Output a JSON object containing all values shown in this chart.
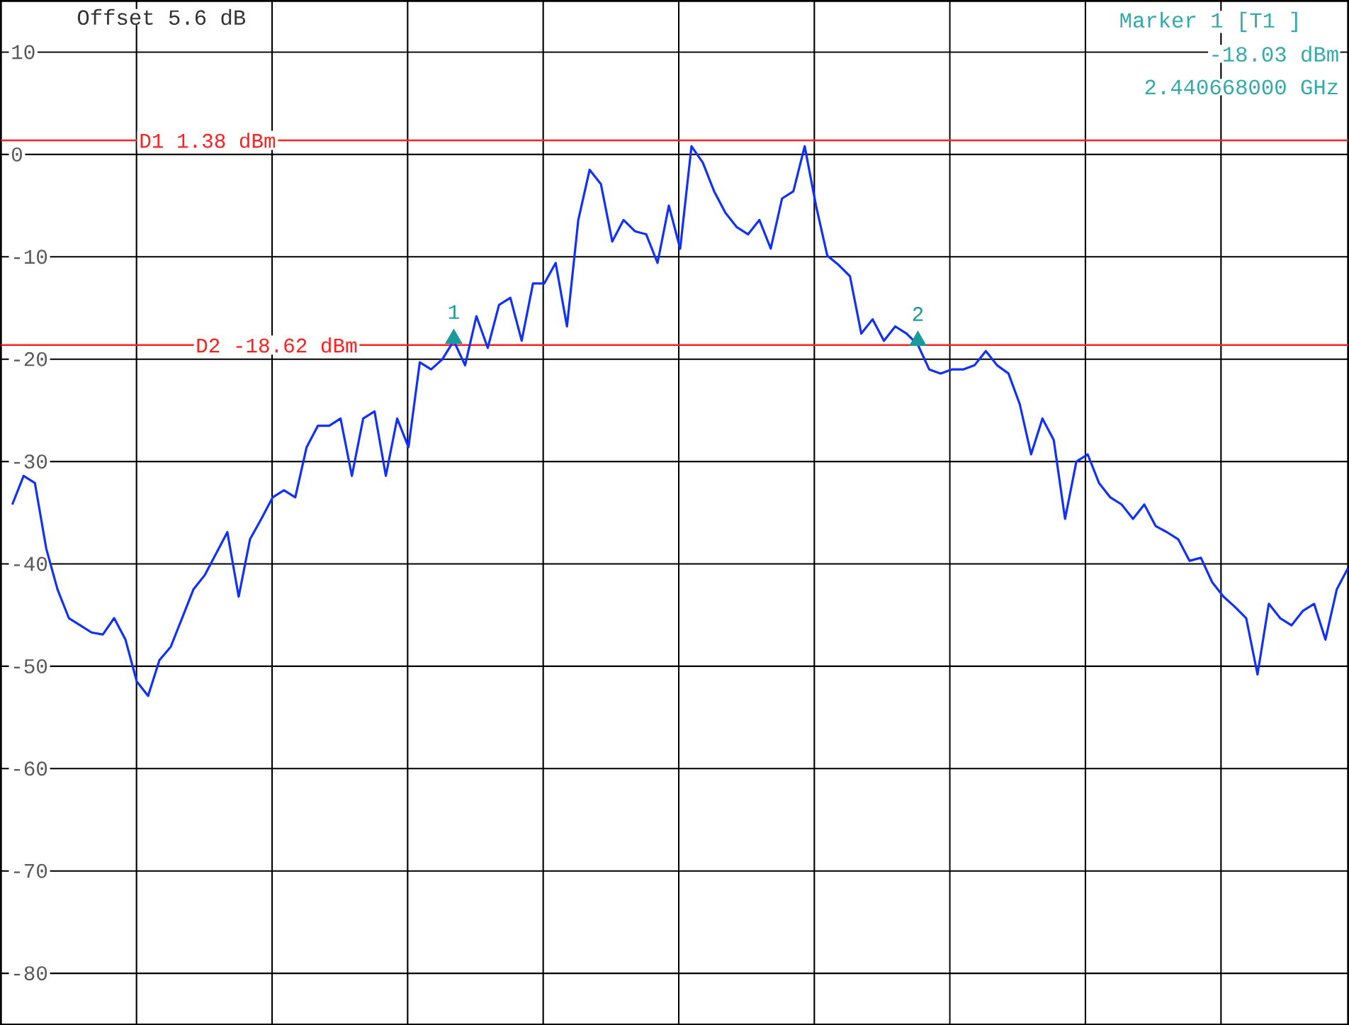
{
  "chart_data": {
    "type": "line",
    "categories": [
      null,
      null,
      null,
      null,
      null,
      null,
      null,
      null,
      null,
      null,
      null,
      null,
      null,
      null,
      null,
      null,
      null,
      null,
      null,
      null,
      null,
      null,
      null,
      null,
      null,
      null,
      null,
      null,
      null,
      null,
      null,
      null,
      null,
      null,
      null,
      null,
      null,
      null,
      null,
      null,
      null,
      null,
      null,
      null,
      null,
      null,
      null,
      null,
      null,
      null,
      null,
      null,
      null,
      null,
      null,
      null,
      null,
      null,
      null,
      null,
      null,
      null,
      null,
      null,
      null,
      null,
      null,
      null,
      null,
      null,
      null,
      null,
      null,
      null,
      null,
      null,
      null,
      null,
      null,
      null,
      null,
      null,
      null,
      null,
      null,
      null,
      null,
      null,
      null,
      null,
      null,
      null,
      null,
      null,
      null,
      null,
      null,
      null,
      null,
      null,
      null,
      null,
      null,
      null,
      null,
      null,
      null,
      null,
      null,
      null,
      null,
      null,
      null,
      null,
      null,
      null,
      null,
      null,
      null
    ],
    "series": [
      {
        "color": "#1030ff",
        "values": [
          -34.2,
          -31.4,
          -32.1,
          -38.5,
          -42.5,
          -45.3,
          -46.0,
          -46.7,
          -46.9,
          -45.3,
          -47.4,
          -51.5,
          -52.9,
          -49.4,
          -48.1,
          -45.3,
          -42.5,
          -41.1,
          -39.0,
          -36.9,
          -43.2,
          -37.6,
          -35.6,
          -33.5,
          -32.8,
          -33.5,
          -28.6,
          -26.5,
          -26.5,
          -25.8,
          -31.4,
          -25.8,
          -25.1,
          -31.4,
          -25.8,
          -28.6,
          -20.3,
          -21.0,
          -20.0,
          -18.2,
          -20.6,
          -15.8,
          -18.9,
          -14.7,
          -14.0,
          -18.2,
          -12.6,
          -12.6,
          -10.6,
          -16.8,
          -6.4,
          -1.5,
          -2.9,
          -8.5,
          -6.4,
          -7.5,
          -7.8,
          -10.6,
          -5.0,
          -9.2,
          0.8,
          -0.8,
          -3.6,
          -5.7,
          -7.1,
          -7.8,
          -6.4,
          -9.2,
          -4.3,
          -3.6,
          0.8,
          -5.0,
          -9.9,
          -10.8,
          -11.9,
          -17.5,
          -16.1,
          -18.2,
          -16.8,
          -17.5,
          -18.6,
          -21.0,
          -21.4,
          -21.0,
          -21.0,
          -20.6,
          -19.2,
          -20.6,
          -21.4,
          -24.4,
          -29.3,
          -25.8,
          -27.9,
          -35.6,
          -30.0,
          -29.3,
          -32.1,
          -33.5,
          -34.2,
          -35.6,
          -34.2,
          -36.3,
          -36.9,
          -37.6,
          -39.7,
          -39.4,
          -41.8,
          -43.2,
          -44.2,
          -45.3,
          -50.8,
          -43.9,
          -45.3,
          -46.0,
          -44.6,
          -43.9,
          -47.4,
          -42.5,
          -40.4
        ]
      },
      {
        "type": "scatter",
        "name": "1",
        "marker": "triangle",
        "color": "#1a9a9a",
        "values": [
          null,
          null,
          null,
          null,
          null,
          null,
          null,
          null,
          null,
          null,
          null,
          null,
          null,
          null,
          null,
          null,
          null,
          null,
          null,
          null,
          null,
          null,
          null,
          null,
          null,
          null,
          null,
          null,
          null,
          null,
          null,
          null,
          null,
          null,
          null,
          null,
          null,
          null,
          null,
          -18.0,
          null,
          null,
          null,
          null,
          null,
          null,
          null,
          null,
          null,
          null,
          null,
          null,
          null,
          null,
          null,
          null,
          null,
          null,
          null,
          null,
          null,
          null,
          null,
          null,
          null,
          null,
          null,
          null,
          null,
          null,
          null,
          null,
          null,
          null,
          null,
          null,
          null,
          null,
          null,
          null,
          null,
          null,
          null,
          null,
          null,
          null,
          null,
          null,
          null,
          null,
          null,
          null,
          null,
          null,
          null,
          null,
          null,
          null,
          null,
          null,
          null,
          null,
          null,
          null,
          null,
          null,
          null,
          null,
          null,
          null,
          null,
          null,
          null,
          null,
          null,
          null,
          null,
          null,
          null
        ]
      },
      {
        "type": "scatter",
        "name": "2",
        "marker": "triangle",
        "color": "#1a9a9a",
        "values": [
          null,
          null,
          null,
          null,
          null,
          null,
          null,
          null,
          null,
          null,
          null,
          null,
          null,
          null,
          null,
          null,
          null,
          null,
          null,
          null,
          null,
          null,
          null,
          null,
          null,
          null,
          null,
          null,
          null,
          null,
          null,
          null,
          null,
          null,
          null,
          null,
          null,
          null,
          null,
          null,
          null,
          null,
          null,
          null,
          null,
          null,
          null,
          null,
          null,
          null,
          null,
          null,
          null,
          null,
          null,
          null,
          null,
          null,
          null,
          null,
          null,
          null,
          null,
          null,
          null,
          null,
          null,
          null,
          null,
          null,
          null,
          null,
          null,
          null,
          null,
          null,
          null,
          null,
          null,
          null,
          -18.2,
          null,
          null,
          null,
          null,
          null,
          null,
          null,
          null,
          null,
          null,
          null,
          null,
          null,
          null,
          null,
          null,
          null,
          null,
          null,
          null,
          null,
          null,
          null,
          null,
          null,
          null,
          null,
          null,
          null,
          null,
          null,
          null,
          null,
          null,
          null,
          null,
          null,
          null
        ]
      }
    ],
    "ylim": [
      -85,
      15
    ],
    "yticks": [
      10,
      0,
      -10,
      -20,
      -30,
      -40,
      -50,
      -60,
      -70,
      -80
    ],
    "tick_labels": "y",
    "grid": true,
    "marker": "none",
    "line_style": "solid",
    "ref_lines": [
      {
        "axis": "y",
        "value": 1.38,
        "label": "D1 1.38 dBm",
        "color": "#ff2020"
      },
      {
        "axis": "y",
        "value": -18.62,
        "label": "D2 -18.62 dBm",
        "color": "#ff2020"
      }
    ],
    "annotations": [
      "Offset 5.6 dB",
      "Marker 1 [T1 ]",
      "-18.03 dBm",
      "2.440668000 GHz"
    ]
  }
}
